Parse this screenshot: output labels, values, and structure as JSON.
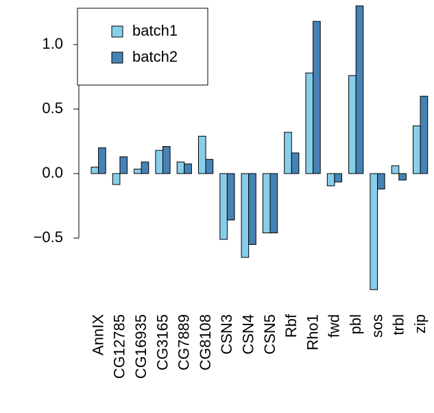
{
  "chart_data": {
    "type": "bar",
    "categories": [
      "AnnIX",
      "CG12785",
      "CG16935",
      "CG3165",
      "CG7889",
      "CG8108",
      "CSN3",
      "CSN4",
      "CSN5",
      "Rbf",
      "Rho1",
      "fwd",
      "pbl",
      "sos",
      "trbl",
      "zip"
    ],
    "series": [
      {
        "name": "batch1",
        "color": "#87ceeb",
        "values": [
          0.05,
          -0.085,
          0.035,
          0.18,
          0.09,
          0.29,
          -0.51,
          -0.65,
          -0.46,
          0.32,
          0.78,
          -0.095,
          0.76,
          -0.9,
          0.06,
          0.37
        ]
      },
      {
        "name": "batch2",
        "color": "#4682b4",
        "values": [
          0.2,
          0.13,
          0.09,
          0.21,
          0.075,
          0.11,
          -0.36,
          -0.55,
          -0.46,
          0.16,
          1.18,
          -0.065,
          1.3,
          -0.12,
          -0.05,
          0.6
        ]
      }
    ],
    "ylim": [
      -1,
      1.3
    ],
    "yticks": [
      {
        "value": -0.5,
        "label": "−0.5"
      },
      {
        "value": 0,
        "label": "0.0"
      },
      {
        "value": 0.5,
        "label": "0.5"
      },
      {
        "value": 1,
        "label": "1.0"
      }
    ],
    "legend": "top-left"
  }
}
